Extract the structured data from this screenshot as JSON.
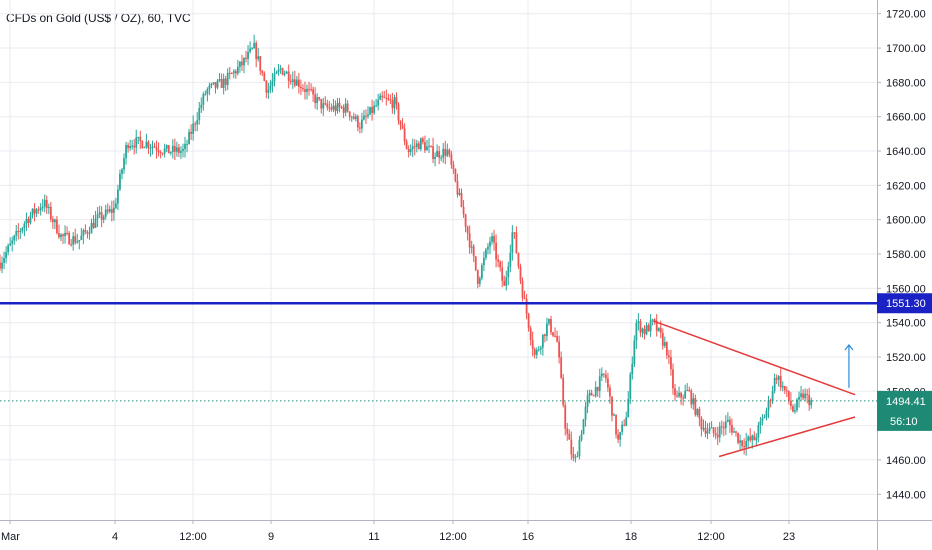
{
  "title": "CFDs on Gold (US$ / OZ), 60, TVC",
  "colors": {
    "up": "#26a69a",
    "down": "#ef5350",
    "grid": "#e9ebf0",
    "axis_text": "#131722",
    "level_line": "#1a22c4",
    "level_label_bg": "#1a22c4",
    "current_label_bg": "#1e8a75",
    "triangle": "#e33b3b",
    "arrow": "#2b8cd9"
  },
  "chart_data": {
    "type": "candlestick",
    "instrument": "CFDs on Gold (US$ / OZ)",
    "interval": "60",
    "source": "TVC",
    "y_ticks": [
      1440,
      1460,
      1480,
      1500,
      1520,
      1540,
      1560,
      1580,
      1600,
      1620,
      1640,
      1660,
      1680,
      1700,
      1720
    ],
    "y_tick_labels": [
      "1440.00",
      "1460.00",
      "1480.00",
      "1500.00",
      "1520.00",
      "1540.00",
      "1560.00",
      "1580.00",
      "1600.00",
      "1620.00",
      "1640.00",
      "1660.00",
      "1680.00",
      "1700.00",
      "1720.00"
    ],
    "ylim": [
      1425,
      1728
    ],
    "x_tick_labels": [
      "Mar",
      "4",
      "12:00",
      "9",
      "11",
      "12:00",
      "16",
      "18",
      "12:00",
      "23"
    ],
    "price_path": [
      [
        0,
        1575
      ],
      [
        0.03,
        1600
      ],
      [
        0.05,
        1610
      ],
      [
        0.07,
        1590
      ],
      [
        0.09,
        1588
      ],
      [
        0.11,
        1600
      ],
      [
        0.13,
        1606
      ],
      [
        0.145,
        1645
      ],
      [
        0.165,
        1645
      ],
      [
        0.19,
        1640
      ],
      [
        0.21,
        1640
      ],
      [
        0.235,
        1675
      ],
      [
        0.255,
        1680
      ],
      [
        0.275,
        1690
      ],
      [
        0.29,
        1700
      ],
      [
        0.305,
        1675
      ],
      [
        0.32,
        1688
      ],
      [
        0.34,
        1680
      ],
      [
        0.37,
        1665
      ],
      [
        0.395,
        1665
      ],
      [
        0.41,
        1655
      ],
      [
        0.435,
        1670
      ],
      [
        0.45,
        1668
      ],
      [
        0.465,
        1640
      ],
      [
        0.48,
        1645
      ],
      [
        0.495,
        1638
      ],
      [
        0.51,
        1640
      ],
      [
        0.53,
        1600
      ],
      [
        0.545,
        1565
      ],
      [
        0.56,
        1590
      ],
      [
        0.575,
        1560
      ],
      [
        0.585,
        1595
      ],
      [
        0.595,
        1560
      ],
      [
        0.61,
        1520
      ],
      [
        0.625,
        1540
      ],
      [
        0.635,
        1530
      ],
      [
        0.645,
        1478
      ],
      [
        0.655,
        1457
      ],
      [
        0.67,
        1495
      ],
      [
        0.69,
        1510
      ],
      [
        0.705,
        1470
      ],
      [
        0.715,
        1488
      ],
      [
        0.725,
        1540
      ],
      [
        0.735,
        1535
      ],
      [
        0.745,
        1540
      ],
      [
        0.76,
        1525
      ],
      [
        0.77,
        1495
      ],
      [
        0.785,
        1500
      ],
      [
        0.8,
        1480
      ],
      [
        0.815,
        1475
      ],
      [
        0.83,
        1482
      ],
      [
        0.845,
        1470
      ],
      [
        0.86,
        1472
      ],
      [
        0.875,
        1490
      ],
      [
        0.885,
        1510
      ],
      [
        0.895,
        1500
      ],
      [
        0.905,
        1488
      ],
      [
        0.915,
        1498
      ],
      [
        0.925,
        1494
      ]
    ],
    "horizontal_level": {
      "value": 1551.3,
      "label": "1551.30"
    },
    "current_price": {
      "value": 1494.41,
      "label": "1494.41",
      "countdown": "56:10"
    },
    "annotations": {
      "triangle": {
        "upper": [
          [
            0.745,
            1541
          ],
          [
            0.975,
            1498
          ]
        ],
        "lower": [
          [
            0.82,
            1462
          ],
          [
            0.975,
            1485
          ]
        ]
      },
      "arrow": {
        "x": 0.968,
        "from": 1502,
        "to": 1527
      }
    }
  }
}
